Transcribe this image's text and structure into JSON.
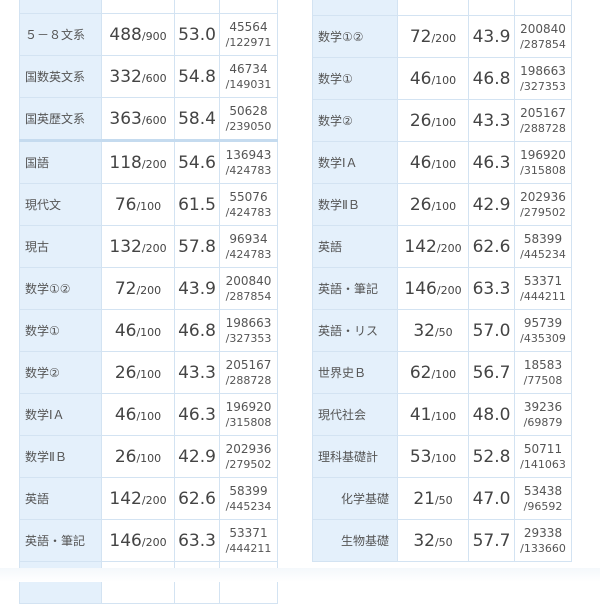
{
  "colors": {
    "label_bg": "#e4f0fb",
    "border": "#d3e3f2"
  },
  "left_table": {
    "rows": [
      {
        "label": "",
        "score": "",
        "max": "",
        "dev": "",
        "rank": "",
        "total": ""
      },
      {
        "label": "５－８文系",
        "score": "488",
        "max": "/900",
        "dev": "53.0",
        "rank": "45564",
        "total": "/122971"
      },
      {
        "label": "国数英文系",
        "score": "332",
        "max": "/600",
        "dev": "54.8",
        "rank": "46734",
        "total": "/149031"
      },
      {
        "label": "国英歴文系",
        "score": "363",
        "max": "/600",
        "dev": "58.4",
        "rank": "50628",
        "total": "/239050"
      },
      {
        "label": "国語",
        "score": "118",
        "max": "/200",
        "dev": "54.6",
        "rank": "136943",
        "total": "/424783"
      },
      {
        "label": "現代文",
        "score": "76",
        "max": "/100",
        "dev": "61.5",
        "rank": "55076",
        "total": "/424783"
      },
      {
        "label": "現古",
        "score": "132",
        "max": "/200",
        "dev": "57.8",
        "rank": "96934",
        "total": "/424783"
      },
      {
        "label": "数学①②",
        "score": "72",
        "max": "/200",
        "dev": "43.9",
        "rank": "200840",
        "total": "/287854"
      },
      {
        "label": "数学①",
        "score": "46",
        "max": "/100",
        "dev": "46.8",
        "rank": "198663",
        "total": "/327353"
      },
      {
        "label": "数学②",
        "score": "26",
        "max": "/100",
        "dev": "43.3",
        "rank": "205167",
        "total": "/288728"
      },
      {
        "label": "数学ⅠＡ",
        "score": "46",
        "max": "/100",
        "dev": "46.3",
        "rank": "196920",
        "total": "/315808"
      },
      {
        "label": "数学ⅡＢ",
        "score": "26",
        "max": "/100",
        "dev": "42.9",
        "rank": "202936",
        "total": "/279502"
      },
      {
        "label": "英語",
        "score": "142",
        "max": "/200",
        "dev": "62.6",
        "rank": "58399",
        "total": "/445234"
      },
      {
        "label": "英語・筆記",
        "score": "146",
        "max": "/200",
        "dev": "63.3",
        "rank": "53371",
        "total": "/444211"
      },
      {
        "label": "",
        "score": "",
        "max": "",
        "dev": "",
        "rank": "",
        "total": ""
      }
    ]
  },
  "right_table": {
    "rows": [
      {
        "label": "",
        "score": "",
        "max": "",
        "dev": "",
        "rank": "",
        "total": ""
      },
      {
        "label": "数学①②",
        "score": "72",
        "max": "/200",
        "dev": "43.9",
        "rank": "200840",
        "total": "/287854"
      },
      {
        "label": "数学①",
        "score": "46",
        "max": "/100",
        "dev": "46.8",
        "rank": "198663",
        "total": "/327353"
      },
      {
        "label": "数学②",
        "score": "26",
        "max": "/100",
        "dev": "43.3",
        "rank": "205167",
        "total": "/288728"
      },
      {
        "label": "数学ⅠＡ",
        "score": "46",
        "max": "/100",
        "dev": "46.3",
        "rank": "196920",
        "total": "/315808"
      },
      {
        "label": "数学ⅡＢ",
        "score": "26",
        "max": "/100",
        "dev": "42.9",
        "rank": "202936",
        "total": "/279502"
      },
      {
        "label": "英語",
        "score": "142",
        "max": "/200",
        "dev": "62.6",
        "rank": "58399",
        "total": "/445234"
      },
      {
        "label": "英語・筆記",
        "score": "146",
        "max": "/200",
        "dev": "63.3",
        "rank": "53371",
        "total": "/444211"
      },
      {
        "label": "英語・リス",
        "score": "32",
        "max": "/50",
        "dev": "57.0",
        "rank": "95739",
        "total": "/435309"
      },
      {
        "label": "世界史Ｂ",
        "score": "62",
        "max": "/100",
        "dev": "56.7",
        "rank": "18583",
        "total": "/77508"
      },
      {
        "label": "現代社会",
        "score": "41",
        "max": "/100",
        "dev": "48.0",
        "rank": "39236",
        "total": "/69879"
      },
      {
        "label": "理科基礎計",
        "score": "53",
        "max": "/100",
        "dev": "52.8",
        "rank": "50711",
        "total": "/141063"
      },
      {
        "label": "化学基礎",
        "score": "21",
        "max": "/50",
        "dev": "47.0",
        "rank": "53438",
        "total": "/96592",
        "indent": true
      },
      {
        "label": "生物基礎",
        "score": "32",
        "max": "/50",
        "dev": "57.7",
        "rank": "29338",
        "total": "/133660",
        "indent": true
      }
    ]
  }
}
